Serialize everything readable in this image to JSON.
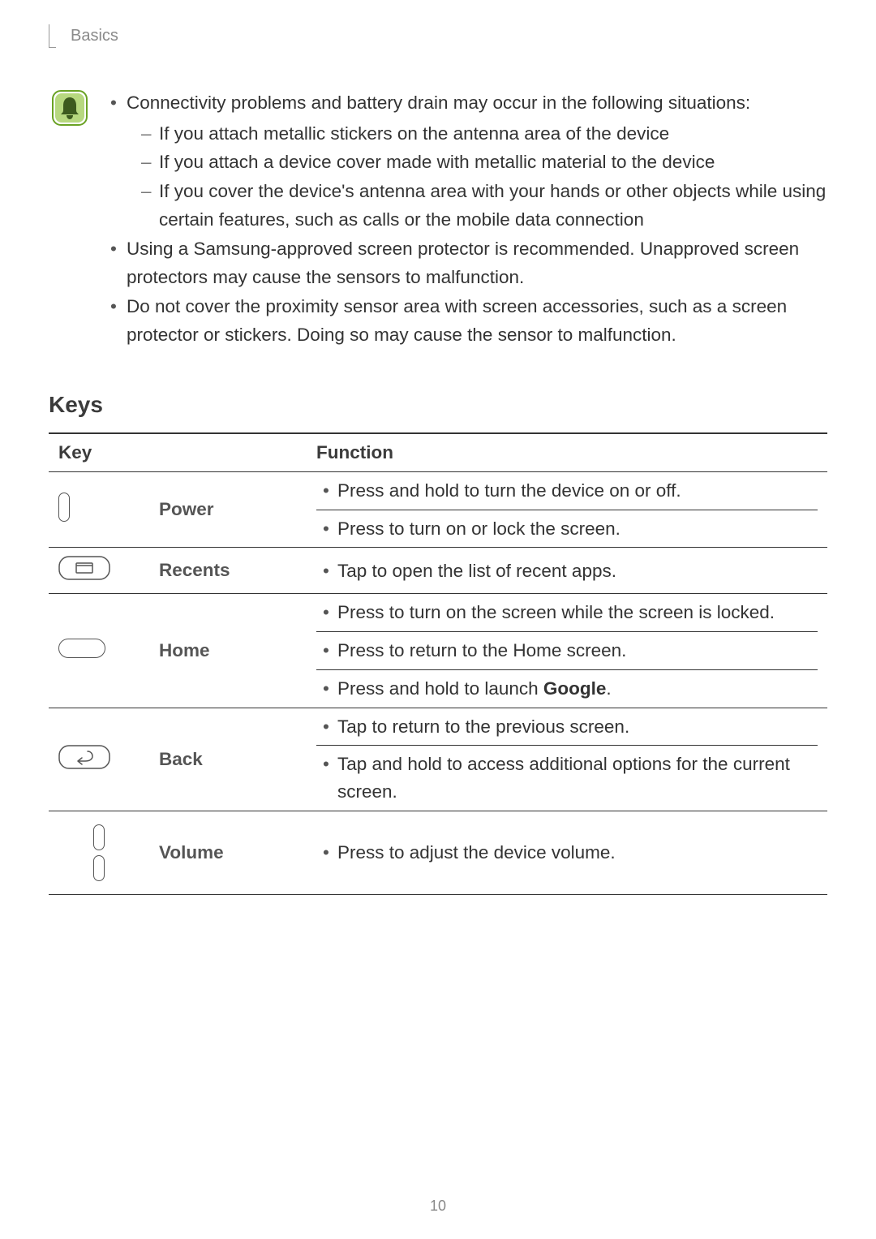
{
  "header": {
    "section": "Basics"
  },
  "note": {
    "icon_name": "bell-note-icon",
    "bullets": [
      {
        "text": "Connectivity problems and battery drain may occur in the following situations:",
        "sub": [
          "If you attach metallic stickers on the antenna area of the device",
          "If you attach a device cover made with metallic material to the device",
          "If you cover the device's antenna area with your hands or other objects while using certain features, such as calls or the mobile data connection"
        ]
      },
      {
        "text": "Using a Samsung-approved screen protector is recommended. Unapproved screen protectors may cause the sensors to malfunction."
      },
      {
        "text": "Do not cover the proximity sensor area with screen accessories, such as a screen protector or stickers. Doing so may cause the sensor to malfunction."
      }
    ]
  },
  "keys_section": {
    "title": "Keys",
    "table": {
      "headers": {
        "key": "Key",
        "func": "Function"
      },
      "rows": [
        {
          "icon": "power-key-icon",
          "label": "Power",
          "functions": [
            "Press and hold to turn the device on or off.",
            "Press to turn on or lock the screen."
          ],
          "ruled": true
        },
        {
          "icon": "recents-key-icon",
          "label": "Recents",
          "functions": [
            "Tap to open the list of recent apps."
          ],
          "ruled": false
        },
        {
          "icon": "home-key-icon",
          "label": "Home",
          "functions": [
            "Press to turn on the screen while the screen is locked.",
            "Press to return to the Home screen.",
            "__HTML__Press and hold to launch <b>Google</b>."
          ],
          "ruled": true
        },
        {
          "icon": "back-key-icon",
          "label": "Back",
          "functions": [
            "Tap to return to the previous screen.",
            "Tap and hold to access additional options for the current screen."
          ],
          "ruled": true
        },
        {
          "icon": "volume-key-icon",
          "label": "Volume",
          "functions": [
            "Press to adjust the device volume."
          ],
          "ruled": false
        }
      ]
    }
  },
  "page_number": "10",
  "colors": {
    "text": "#333333",
    "muted": "#8a8a8a",
    "key_label": "#555555",
    "border": "#333333",
    "note_bg": "#b7d87f",
    "note_stroke": "#6aa224"
  }
}
